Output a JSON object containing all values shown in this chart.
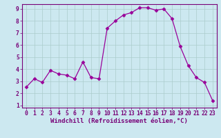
{
  "x": [
    0,
    1,
    2,
    3,
    4,
    5,
    6,
    7,
    8,
    9,
    10,
    11,
    12,
    13,
    14,
    15,
    16,
    17,
    18,
    19,
    20,
    21,
    22,
    23
  ],
  "y": [
    2.5,
    3.2,
    2.9,
    3.9,
    3.6,
    3.5,
    3.2,
    4.6,
    3.3,
    3.2,
    7.4,
    8.0,
    8.5,
    8.7,
    9.1,
    9.1,
    8.9,
    9.0,
    8.2,
    5.9,
    4.3,
    3.3,
    2.9,
    1.4
  ],
  "line_color": "#990099",
  "marker": "D",
  "marker_size": 2.5,
  "bg_color": "#cce8f0",
  "grid_color": "#aacccc",
  "xlim": [
    -0.5,
    23.5
  ],
  "ylim": [
    0.8,
    9.4
  ],
  "xticks": [
    0,
    1,
    2,
    3,
    4,
    5,
    6,
    7,
    8,
    9,
    10,
    11,
    12,
    13,
    14,
    15,
    16,
    17,
    18,
    19,
    20,
    21,
    22,
    23
  ],
  "yticks": [
    1,
    2,
    3,
    4,
    5,
    6,
    7,
    8,
    9
  ],
  "tick_color": "#770077",
  "label_color": "#770077",
  "spine_color": "#770077",
  "font_size": 5.8,
  "xlabel": "Windchill (Refroidissement éolien,°C)",
  "xlabel_fontsize": 6.5
}
